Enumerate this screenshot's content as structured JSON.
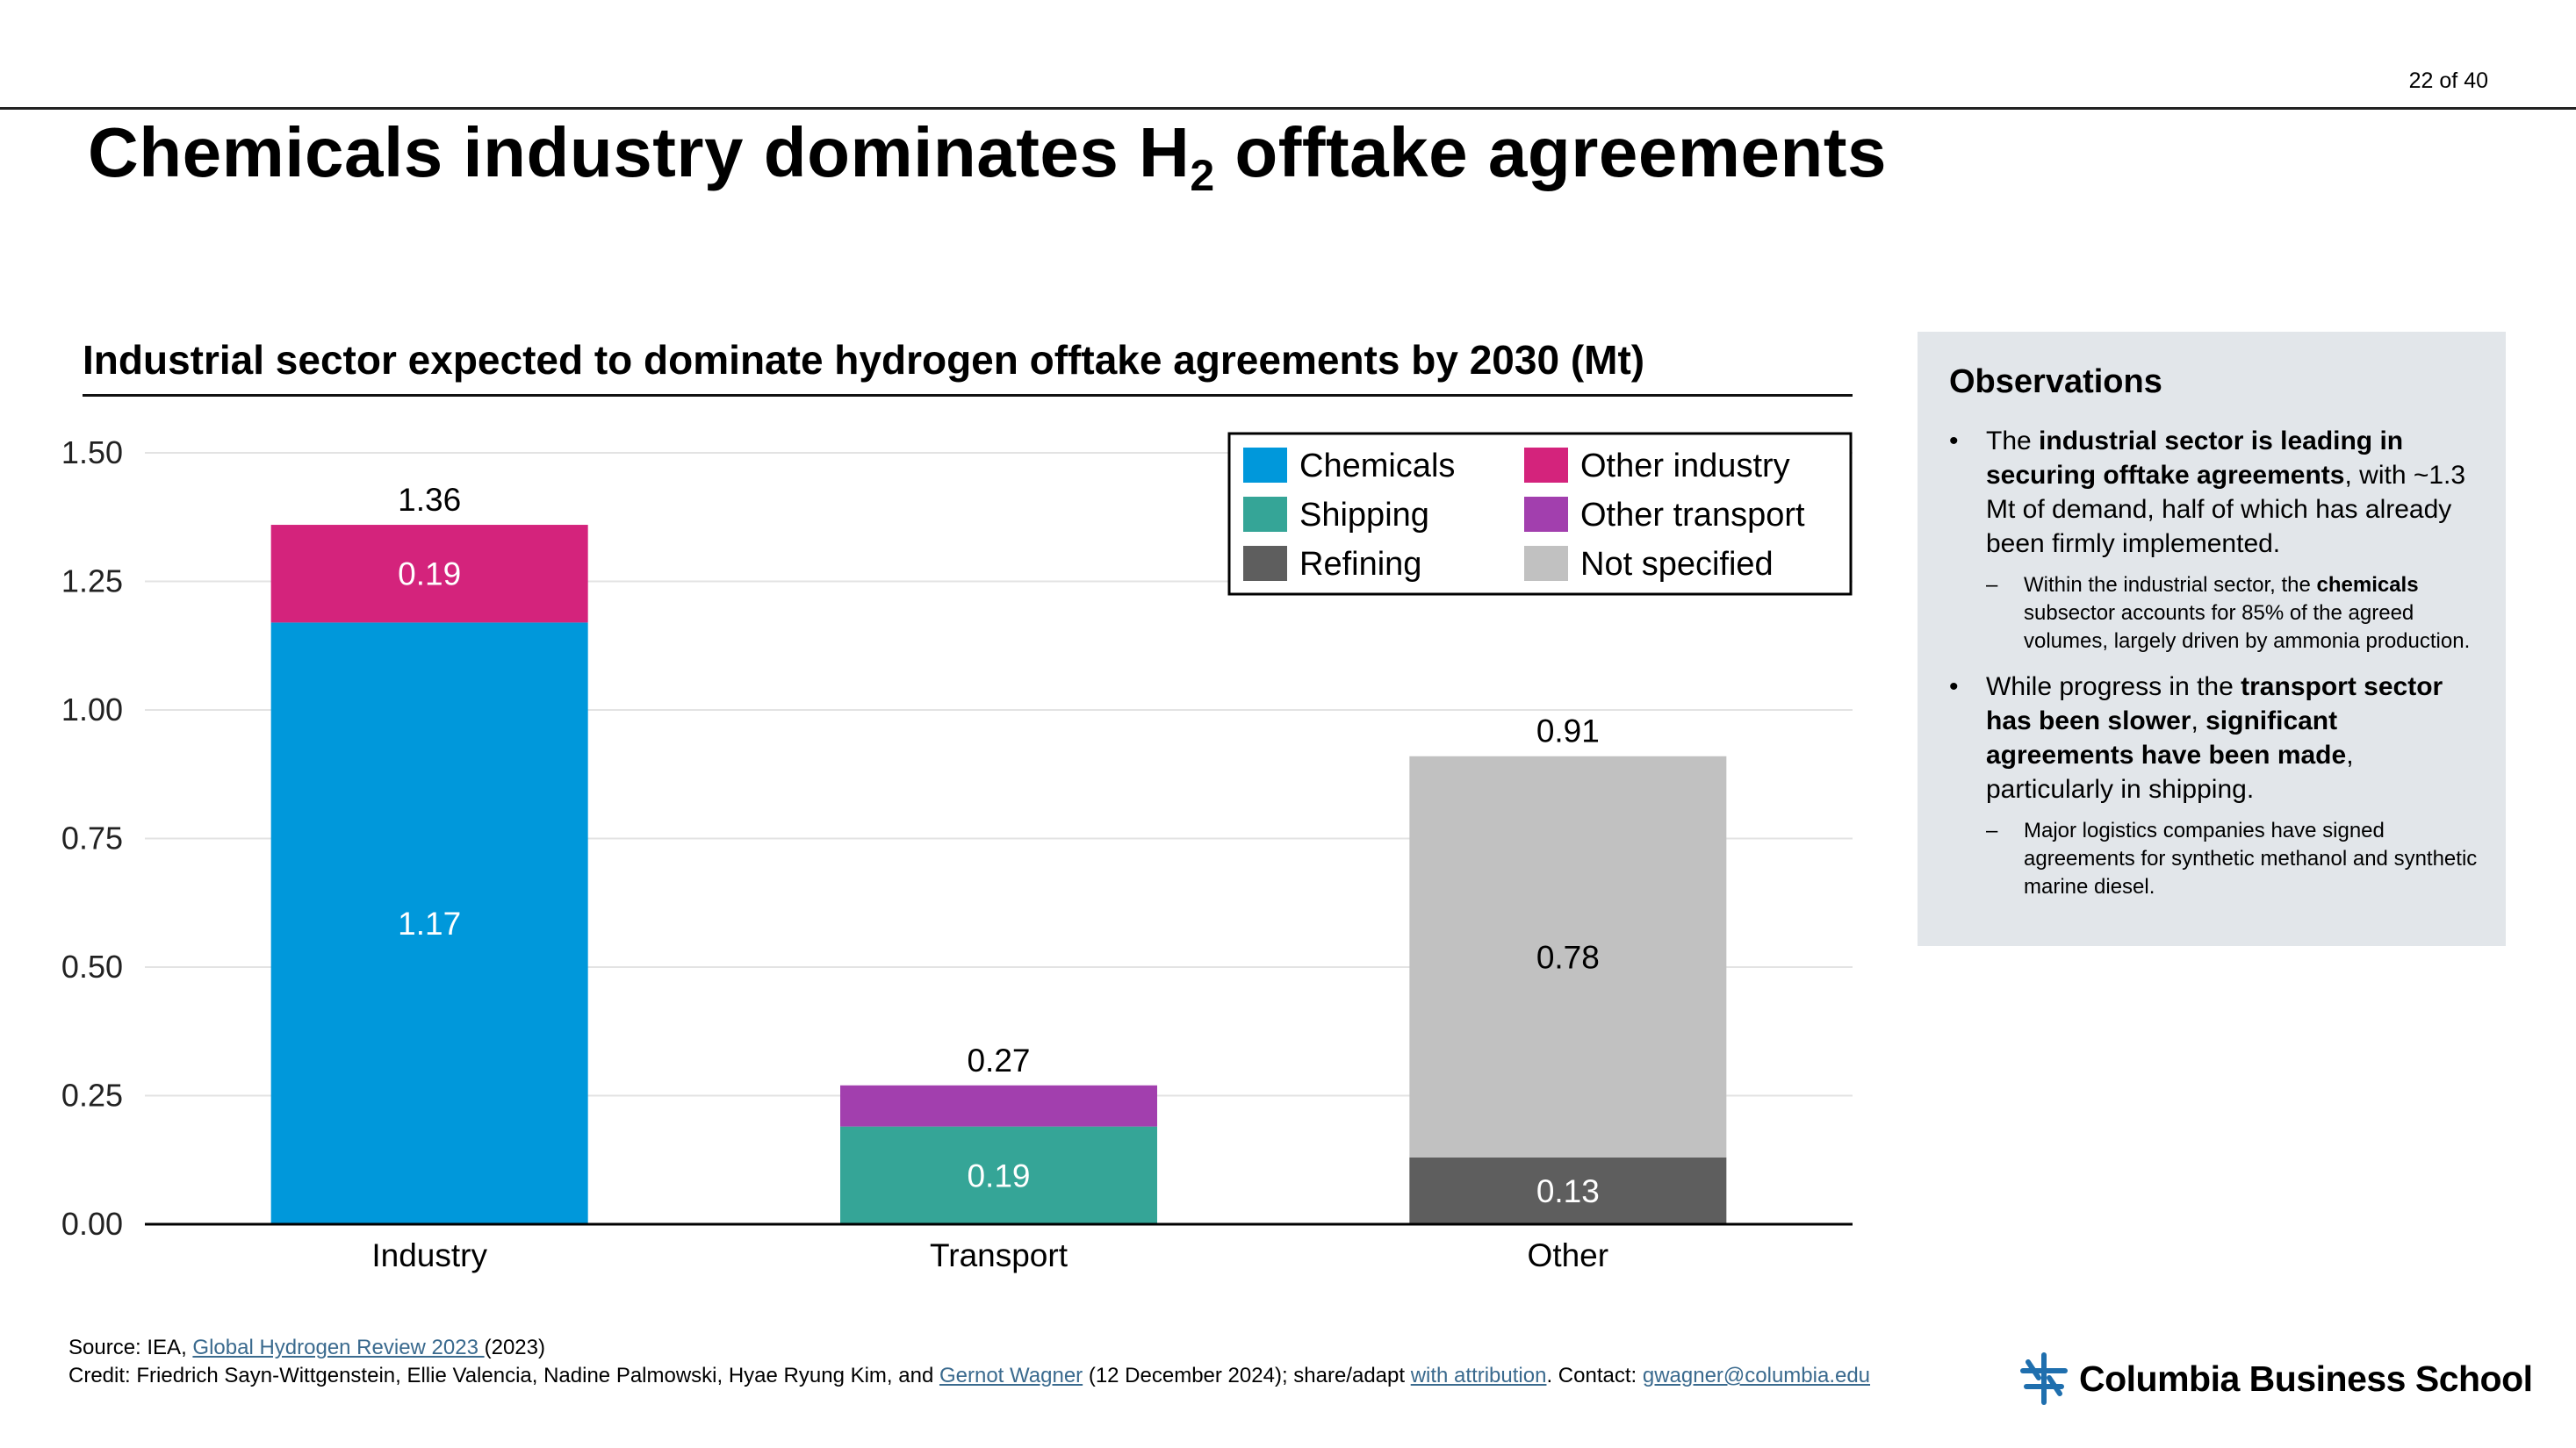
{
  "page": {
    "page_number": "22 of 40",
    "title_main": "Chemicals industry dominates H",
    "title_sub": "2",
    "title_rest": " offtake agreements"
  },
  "chart_data": {
    "type": "bar",
    "stacked": true,
    "title": "Industrial sector expected to dominate hydrogen offtake agreements by 2030 (Mt)",
    "categories": [
      "Industry",
      "Transport",
      "Other"
    ],
    "ylim": [
      0,
      1.5
    ],
    "yticks": [
      "0.00",
      "0.25",
      "0.50",
      "0.75",
      "1.00",
      "1.25",
      "1.50"
    ],
    "grid": true,
    "legend_position": "top-right",
    "series": [
      {
        "name": "Chemicals",
        "color": "#0098db",
        "values": [
          1.17,
          0,
          0
        ],
        "labels": [
          "1.17",
          "",
          ""
        ],
        "label_color": "#ffffff"
      },
      {
        "name": "Other industry",
        "color": "#d4237c",
        "values": [
          0.19,
          0,
          0
        ],
        "labels": [
          "0.19",
          "",
          ""
        ],
        "label_color": "#ffffff"
      },
      {
        "name": "Shipping",
        "color": "#35a597",
        "values": [
          0,
          0.19,
          0
        ],
        "labels": [
          "",
          "0.19",
          ""
        ],
        "label_color": "#ffffff"
      },
      {
        "name": "Other transport",
        "color": "#a23fae",
        "values": [
          0,
          0.08,
          0
        ],
        "labels": [
          "",
          "",
          ""
        ],
        "label_color": "#ffffff"
      },
      {
        "name": "Refining",
        "color": "#5e5e5e",
        "values": [
          0,
          0,
          0.13
        ],
        "labels": [
          "",
          "",
          "0.13"
        ],
        "label_color": "#ffffff"
      },
      {
        "name": "Not specified",
        "color": "#c1c1c1",
        "values": [
          0,
          0,
          0.78
        ],
        "labels": [
          "",
          "",
          "0.78"
        ],
        "label_color": "#000000"
      }
    ],
    "totals": [
      1.36,
      0.27,
      0.91
    ],
    "total_labels": [
      "1.36",
      "0.27",
      "0.91"
    ]
  },
  "observations": {
    "title": "Observations",
    "b1_pre": "The ",
    "b1_bold": "industrial sector is leading in securing offtake agreements",
    "b1_post": ", with ~1.3 Mt of demand, half of which has already been firmly implemented.",
    "s1_pre": "Within the industrial sector, the ",
    "s1_bold": "chemicals",
    "s1_post": " subsector accounts for 85% of the agreed volumes, largely driven by ammonia production.",
    "b2_pre": "While progress in the ",
    "b2_bold1": "transport sector has been slower",
    "b2_mid": ", ",
    "b2_bold2": "significant agreements have been made",
    "b2_post": ", particularly in shipping.",
    "s2": "Major logistics companies have signed agreements for synthetic methanol and synthetic marine diesel."
  },
  "footer": {
    "source_pre": "Source: IEA, ",
    "source_link": "Global Hydrogen Review 2023 ",
    "source_post": "(2023)",
    "credit_pre": "Credit: Friedrich Sayn-Wittgenstein, Ellie Valencia, Nadine Palmowski, Hyae Ryung Kim, and ",
    "credit_link1": "Gernot Wagner",
    "credit_mid": " (12 December 2024); share/adapt ",
    "credit_link2": "with attribution",
    "credit_mid2": ". Contact: ",
    "credit_link3": "gwagner@columbia.edu"
  },
  "logo": {
    "text": "Columbia Business School",
    "icon": "columbia-crown-icon"
  }
}
